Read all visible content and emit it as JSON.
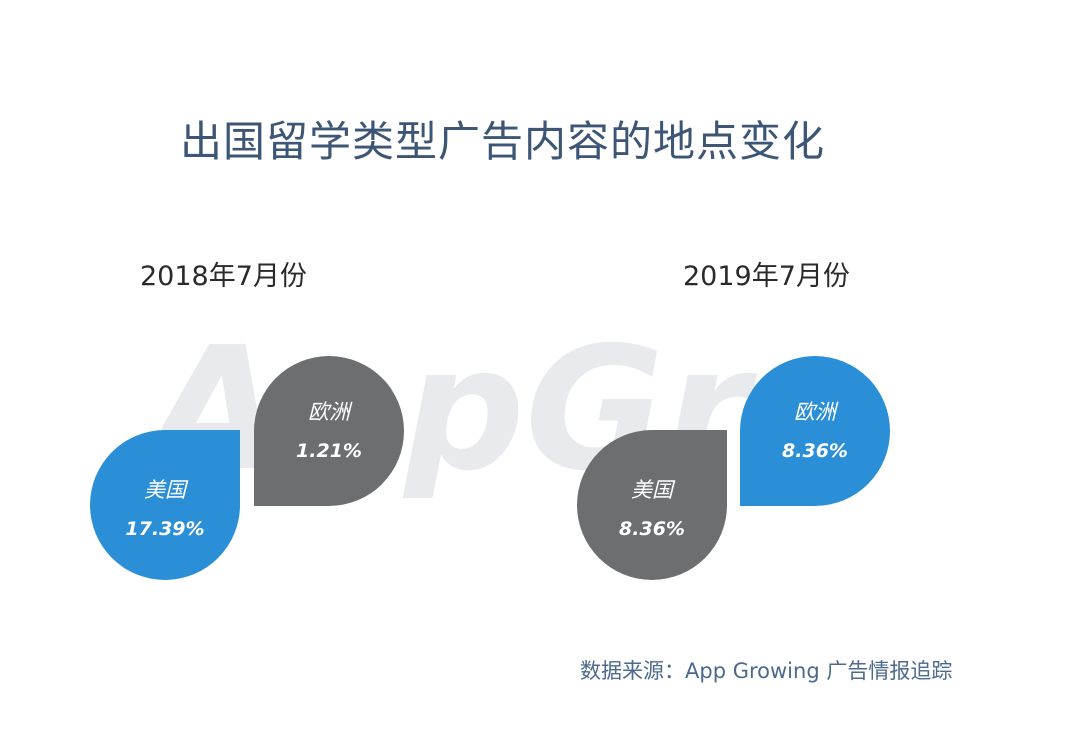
{
  "title": "出国留学类型广告内容的地点变化",
  "watermark": "AppGrowing",
  "periods": [
    {
      "label": "2018年7月份",
      "regions": [
        {
          "name": "美国",
          "value": "17.39%"
        },
        {
          "name": "欧洲",
          "value": "1.21%"
        }
      ]
    },
    {
      "label": "2019年7月份",
      "regions": [
        {
          "name": "美国",
          "value": "8.36%"
        },
        {
          "name": "欧洲",
          "value": "8.36%"
        }
      ]
    }
  ],
  "colors": {
    "blue": "#2b8fd8",
    "gray": "#6d6e70",
    "title": "#3d5675",
    "source": "#4c6a8e"
  },
  "source": "数据来源：App Growing 广告情报追踪"
}
